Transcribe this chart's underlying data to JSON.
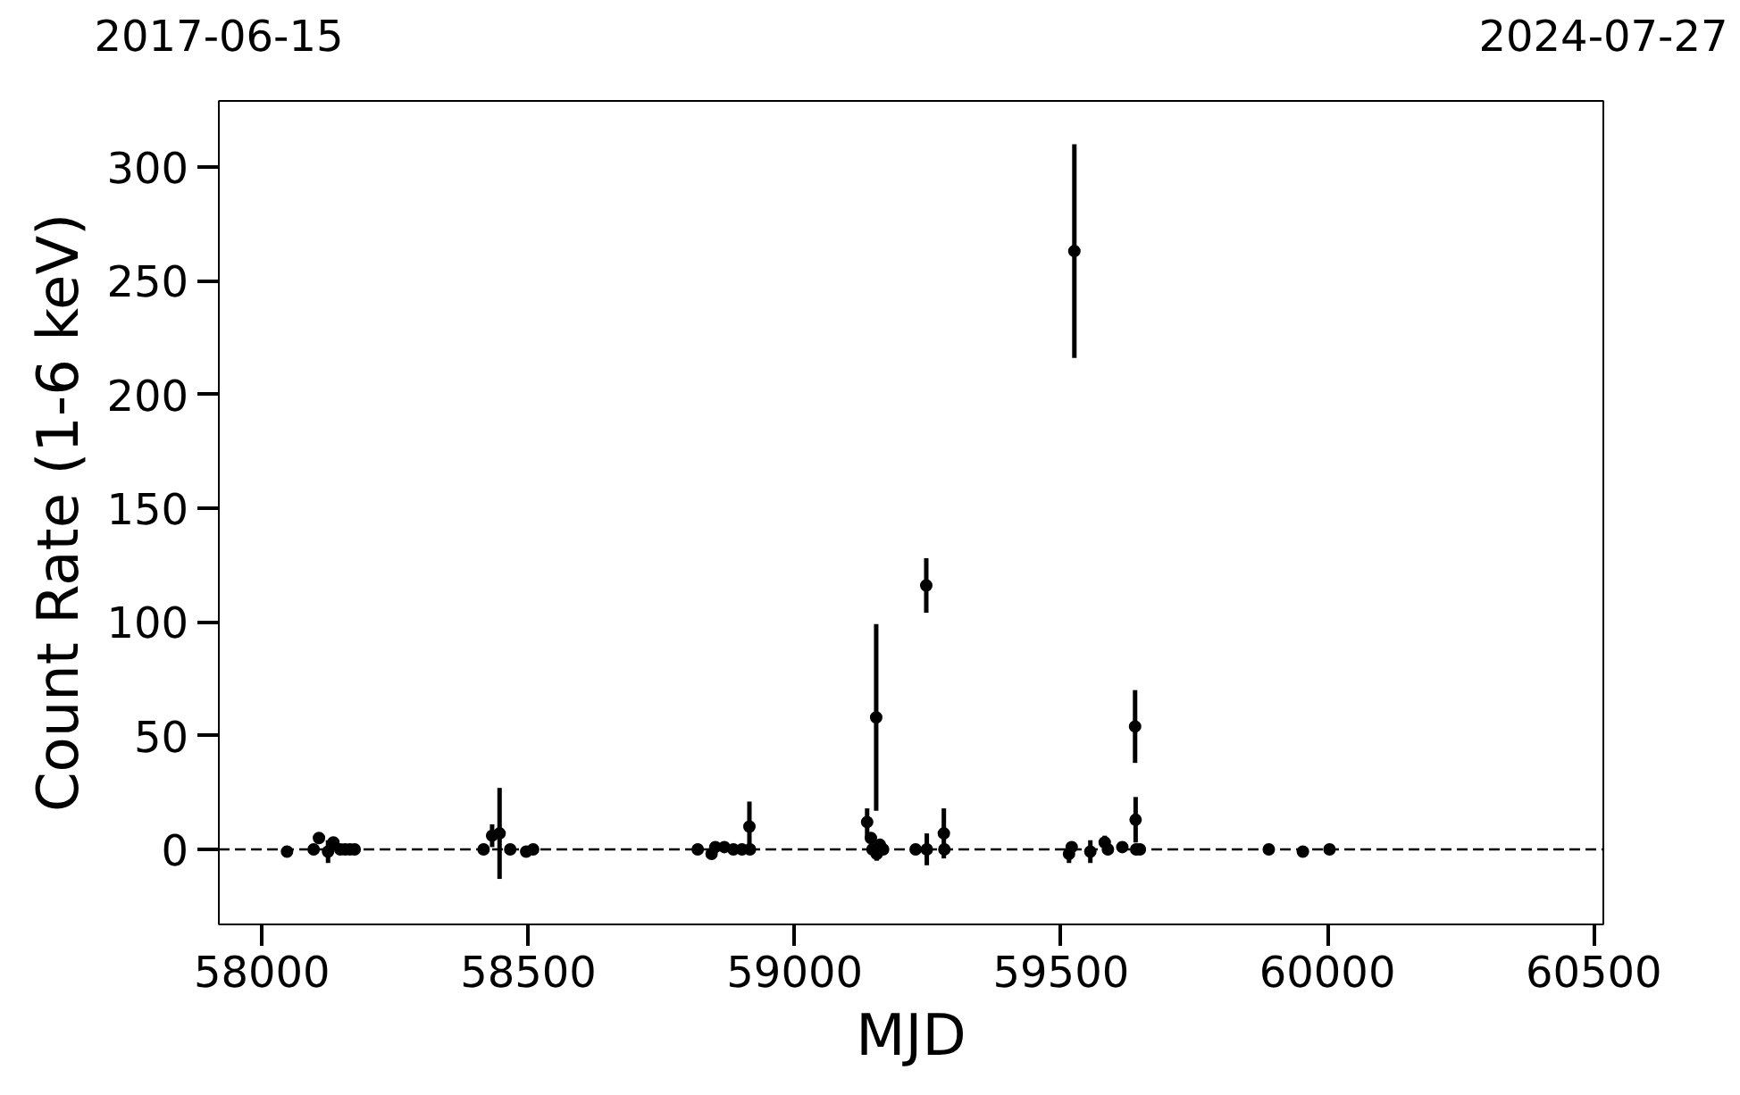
{
  "chart_data": {
    "type": "scatter",
    "xlabel": "MJD",
    "ylabel": "Count Rate (1-6 keV)",
    "x": [
      58047,
      58097,
      58107,
      58124,
      58134,
      58147,
      58156,
      58165,
      58174,
      58416,
      58432,
      58446,
      58466,
      58496,
      58509,
      58818,
      58844,
      58851,
      58868,
      58885,
      58901,
      58915,
      58916,
      59136,
      59143,
      59146,
      59153,
      59154,
      59160,
      59166,
      59227,
      59247,
      59248,
      59280,
      59281,
      59515,
      59520,
      59525,
      59555,
      59582,
      59588,
      59615,
      59639,
      59640,
      59641,
      59648,
      59890,
      59954,
      60004
    ],
    "series": [
      {
        "color": "#000000",
        "values": [
          -1,
          0,
          5,
          -1,
          3,
          0,
          0,
          0,
          0,
          0,
          6,
          7,
          0,
          -1,
          0,
          0,
          -2,
          1,
          1,
          0,
          0,
          10,
          0,
          12,
          5,
          0,
          58,
          -2,
          2,
          0,
          0,
          116,
          0,
          7,
          0,
          -2,
          1,
          263,
          -1,
          3,
          0,
          1,
          54,
          13,
          0,
          0,
          0,
          -1,
          0
        ],
        "errors": [
          null,
          null,
          2,
          5,
          null,
          null,
          null,
          null,
          null,
          null,
          5,
          20,
          null,
          null,
          null,
          null,
          null,
          null,
          null,
          null,
          null,
          11,
          null,
          6,
          null,
          null,
          41,
          3,
          null,
          null,
          null,
          12,
          7,
          11,
          null,
          4,
          null,
          47,
          5,
          3,
          null,
          null,
          16,
          10,
          null,
          null,
          null,
          null,
          null
        ]
      }
    ],
    "xlim": [
      57919,
      60518
    ],
    "xticks": [
      58000,
      58500,
      59000,
      59500,
      60000,
      60500
    ],
    "ylim": [
      -33,
      329
    ],
    "yticks": [
      0,
      50,
      100,
      150,
      200,
      250,
      300
    ],
    "x2lim": [
      "2017-06-15",
      "2024-07-27"
    ],
    "x2ticks": [
      "2017-06-15",
      "2024-07-27"
    ],
    "ref_lines": [
      {
        "axis": "y",
        "value": 0,
        "color": "#000000",
        "line_style": "dashed"
      }
    ],
    "marker": "circle",
    "grid": false
  }
}
